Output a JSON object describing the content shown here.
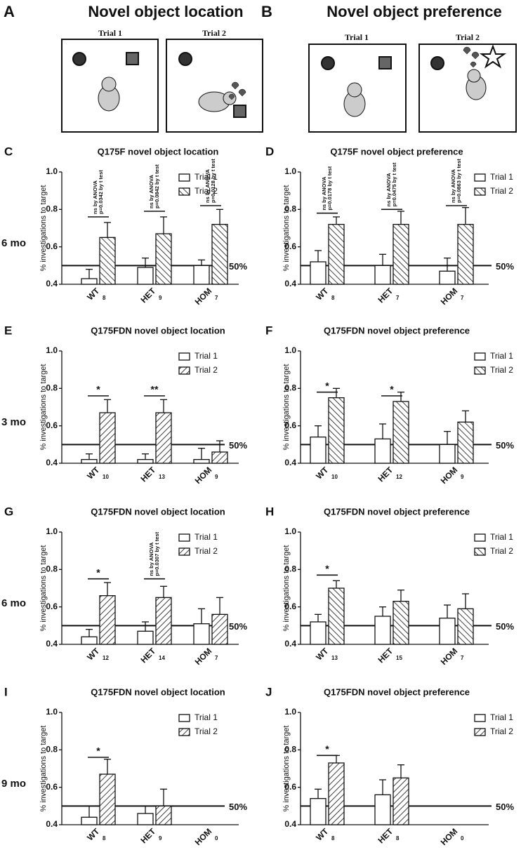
{
  "panels": [
    {
      "letter": "A",
      "title": "Novel object location",
      "trials": [
        "Trial 1",
        "Trial 2"
      ]
    },
    {
      "letter": "B",
      "title": "Novel object preference",
      "trials": [
        "Trial 1",
        "Trial 2"
      ]
    }
  ],
  "row_labels": [
    "6 mo",
    "3 mo",
    "6 mo",
    "9 mo"
  ],
  "chart_data": [
    {
      "type": "bar",
      "panel": "C",
      "title": "Q175F novel object location",
      "ylabel": "% investigations to target",
      "categories": [
        "WT",
        "HET",
        "HOM"
      ],
      "n_labels": [
        8,
        9,
        7
      ],
      "series": [
        {
          "name": "Trial 1",
          "color": "#ffffff",
          "values": [
            0.43,
            0.49,
            0.5
          ],
          "errors": [
            0.05,
            0.05,
            0.03
          ]
        },
        {
          "name": "Trial 2",
          "color": "#ffffff",
          "hatch": "\\",
          "values": [
            0.65,
            0.67,
            0.72
          ],
          "errors": [
            0.08,
            0.09,
            0.08
          ]
        }
      ],
      "ylim": [
        0.4,
        1
      ],
      "yticks": [
        0.4,
        0.6,
        0.8,
        {
          "value": 1,
          "label": "1.0"
        }
      ],
      "reference_line": {
        "value": 0.5,
        "label": "50%"
      },
      "legend": "upper right",
      "annotations": [
        {
          "y": 0.76,
          "text": [
            "ns by ANOVA",
            "p=0.0342 by t test"
          ]
        },
        {
          "y": 0.79,
          "text": [
            "ns by ANOVA",
            "p=0.0842 by t test"
          ]
        },
        {
          "y": 0.82,
          "text": [
            "ns by ANOVA",
            "p=0.0128 by t test"
          ]
        }
      ]
    },
    {
      "type": "bar",
      "panel": "D",
      "title": "Q175F novel object preference",
      "ylabel": "% investigations to target",
      "categories": [
        "WT",
        "HET",
        "HOM"
      ],
      "n_labels": [
        8,
        7,
        7
      ],
      "series": [
        {
          "name": "Trial 1",
          "color": "#ffffff",
          "values": [
            0.52,
            0.5,
            0.47
          ],
          "errors": [
            0.06,
            0.06,
            0.07
          ]
        },
        {
          "name": "Trial 2",
          "color": "#ffffff",
          "hatch": "\\",
          "values": [
            0.72,
            0.72,
            0.72
          ],
          "errors": [
            0.04,
            0.07,
            0.09
          ]
        }
      ],
      "ylim": [
        0.4,
        1
      ],
      "yticks": [
        0.4,
        0.6,
        0.8,
        {
          "value": 1,
          "label": "1.0"
        }
      ],
      "reference_line": {
        "value": 0.5,
        "label": "50%"
      },
      "legend": "upper right",
      "annotations": [
        {
          "y": 0.78,
          "text": [
            "ns by ANOVA",
            "p=0.0178 by t test"
          ]
        },
        {
          "y": 0.8,
          "text": [
            "ns by ANOVA",
            "p=0.0475 by t test"
          ]
        },
        {
          "y": 0.82,
          "text": [
            "ns by ANOVA",
            "p=0.0863 by t test"
          ]
        }
      ]
    },
    {
      "type": "bar",
      "panel": "E",
      "title": "Q175FDN novel object location",
      "ylabel": "% investigations to target",
      "categories": [
        "WT",
        "HET",
        "HOM"
      ],
      "n_labels": [
        10,
        13,
        9
      ],
      "series": [
        {
          "name": "Trial 1",
          "color": "#ffffff",
          "values": [
            0.42,
            0.42,
            0.42
          ],
          "errors": [
            0.03,
            0.03,
            0.06
          ]
        },
        {
          "name": "Trial 2",
          "color": "#ffffff",
          "hatch": "/",
          "values": [
            0.67,
            0.67,
            0.46
          ],
          "errors": [
            0.07,
            0.07,
            0.06
          ]
        }
      ],
      "ylim": [
        0.4,
        1
      ],
      "yticks": [
        0.4,
        0.6,
        0.8,
        {
          "value": 1,
          "label": "1.0"
        }
      ],
      "reference_line": {
        "value": 0.5,
        "label": "50%"
      },
      "legend": "upper right",
      "annotations": [
        {
          "y": 0.76,
          "text": [
            "*"
          ]
        },
        {
          "y": 0.76,
          "text": [
            "**"
          ]
        },
        null
      ]
    },
    {
      "type": "bar",
      "panel": "F",
      "title": "Q175FDN novel object preference",
      "ylabel": "% investigations to target",
      "categories": [
        "WT",
        "HET",
        "HOM"
      ],
      "n_labels": [
        10,
        12,
        9
      ],
      "series": [
        {
          "name": "Trial 1",
          "color": "#ffffff",
          "values": [
            0.54,
            0.53,
            0.5
          ],
          "errors": [
            0.06,
            0.08,
            0.07
          ]
        },
        {
          "name": "Trial 2",
          "color": "#ffffff",
          "hatch": "\\",
          "values": [
            0.75,
            0.73,
            0.62
          ],
          "errors": [
            0.05,
            0.05,
            0.06
          ]
        }
      ],
      "ylim": [
        0.4,
        1
      ],
      "yticks": [
        0.4,
        0.6,
        0.8,
        {
          "value": 1,
          "label": "1.0"
        }
      ],
      "reference_line": {
        "value": 0.5,
        "label": "50%"
      },
      "legend": "upper right",
      "annotations": [
        {
          "y": 0.78,
          "text": [
            "*"
          ]
        },
        {
          "y": 0.76,
          "text": [
            "*"
          ]
        },
        null
      ]
    },
    {
      "type": "bar",
      "panel": "G",
      "title": "Q175FDN novel object location",
      "ylabel": "% investigations to target",
      "categories": [
        "WT",
        "HET",
        "HOM"
      ],
      "n_labels": [
        12,
        14,
        7
      ],
      "series": [
        {
          "name": "Trial 1",
          "color": "#ffffff",
          "values": [
            0.44,
            0.47,
            0.51
          ],
          "errors": [
            0.04,
            0.05,
            0.08
          ]
        },
        {
          "name": "Trial 2",
          "color": "#ffffff",
          "hatch": "/",
          "values": [
            0.66,
            0.65,
            0.56
          ],
          "errors": [
            0.07,
            0.06,
            0.09
          ]
        }
      ],
      "ylim": [
        0.4,
        1
      ],
      "yticks": [
        0.4,
        0.6,
        0.8,
        {
          "value": 1,
          "label": "1.0"
        }
      ],
      "reference_line": {
        "value": 0.5,
        "label": "50%"
      },
      "legend": "upper right",
      "annotations": [
        {
          "y": 0.75,
          "text": [
            "*"
          ]
        },
        {
          "y": 0.75,
          "text": [
            "ns by ANOVA",
            "p=0.0307 by t test"
          ]
        },
        null
      ]
    },
    {
      "type": "bar",
      "panel": "H",
      "title": "Q175FDN novel object preference",
      "ylabel": "% investigations to target",
      "categories": [
        "WT",
        "HET",
        "HOM"
      ],
      "n_labels": [
        13,
        15,
        7
      ],
      "series": [
        {
          "name": "Trial 1",
          "color": "#ffffff",
          "values": [
            0.52,
            0.55,
            0.54
          ],
          "errors": [
            0.04,
            0.05,
            0.07
          ]
        },
        {
          "name": "Trial 2",
          "color": "#ffffff",
          "hatch": "\\",
          "values": [
            0.7,
            0.63,
            0.59
          ],
          "errors": [
            0.04,
            0.06,
            0.08
          ]
        }
      ],
      "ylim": [
        0.4,
        1
      ],
      "yticks": [
        0.4,
        0.6,
        0.8,
        {
          "value": 1,
          "label": "1.0"
        }
      ],
      "reference_line": {
        "value": 0.5,
        "label": "50%"
      },
      "legend": "upper right",
      "annotations": [
        {
          "y": 0.77,
          "text": [
            "*"
          ]
        },
        null,
        null
      ]
    },
    {
      "type": "bar",
      "panel": "I",
      "title": "Q175FDN novel object location",
      "ylabel": "% investigations to target",
      "categories": [
        "WT",
        "HET",
        "HOM"
      ],
      "n_labels": [
        8,
        9,
        0
      ],
      "series": [
        {
          "name": "Trial 1",
          "color": "#ffffff",
          "values": [
            0.44,
            0.46,
            null
          ],
          "errors": [
            0.06,
            0.04,
            null
          ]
        },
        {
          "name": "Trial 2",
          "color": "#ffffff",
          "hatch": "/",
          "values": [
            0.67,
            0.5,
            null
          ],
          "errors": [
            0.08,
            0.09,
            null
          ]
        }
      ],
      "ylim": [
        0.4,
        1
      ],
      "yticks": [
        0.4,
        0.6,
        0.8,
        {
          "value": 1,
          "label": "1.0"
        }
      ],
      "reference_line": {
        "value": 0.5,
        "label": "50%"
      },
      "legend": "upper right",
      "annotations": [
        {
          "y": 0.76,
          "text": [
            "*"
          ]
        },
        null,
        null
      ]
    },
    {
      "type": "bar",
      "panel": "J",
      "title": "Q175FDN novel object preference",
      "ylabel": "% investigations to target",
      "categories": [
        "WT",
        "HET",
        "HOM"
      ],
      "n_labels": [
        8,
        8,
        0
      ],
      "series": [
        {
          "name": "Trial 1",
          "color": "#ffffff",
          "values": [
            0.54,
            0.56,
            null
          ],
          "errors": [
            0.05,
            0.08,
            null
          ]
        },
        {
          "name": "Trial 2",
          "color": "#ffffff",
          "hatch": "/",
          "values": [
            0.73,
            0.65,
            null
          ],
          "errors": [
            0.04,
            0.07,
            null
          ]
        }
      ],
      "ylim": [
        0.4,
        1
      ],
      "yticks": [
        0.4,
        0.6,
        0.8,
        {
          "value": 1,
          "label": "1.0"
        }
      ],
      "reference_line": {
        "value": 0.5,
        "label": "50%"
      },
      "legend": "upper right",
      "annotations": [
        {
          "y": 0.77,
          "text": [
            "*"
          ]
        },
        null,
        null
      ]
    }
  ]
}
